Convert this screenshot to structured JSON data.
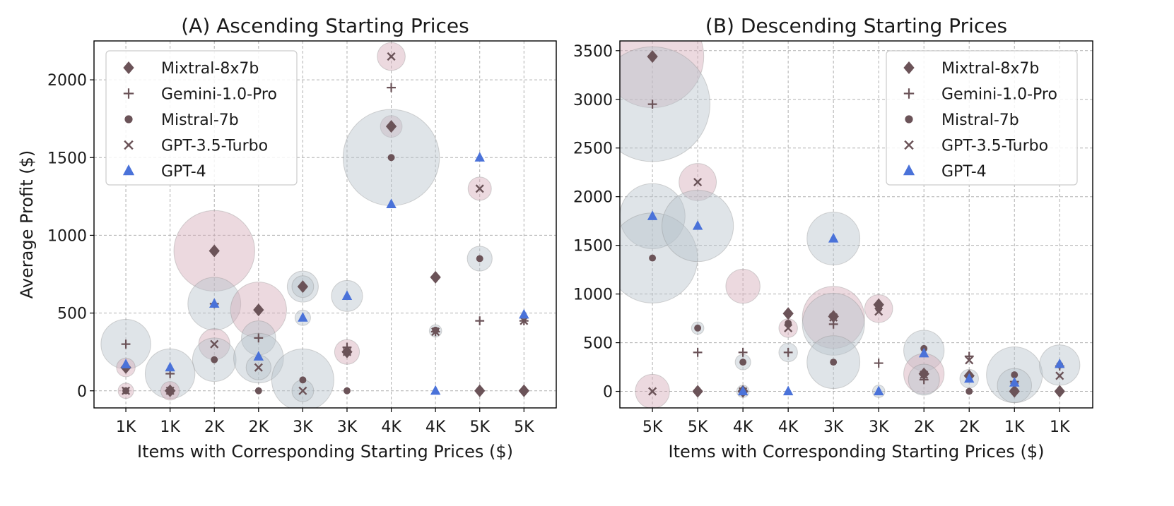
{
  "colors": {
    "mixtral": "#6b5358",
    "gemini": "#6b5358",
    "mistral": "#6b5358",
    "gpt35": "#6b5358",
    "gpt4": "#4a72d9",
    "bubble_pink": "#d4aab8",
    "bubble_grey": "#b9c4cc"
  },
  "series_meta": [
    {
      "key": "mixtral",
      "name": "Mixtral-8x7b",
      "marker": "diamond"
    },
    {
      "key": "gemini",
      "name": "Gemini-1.0-Pro",
      "marker": "plus"
    },
    {
      "key": "mistral",
      "name": "Mistral-7b",
      "marker": "circle"
    },
    {
      "key": "gpt35",
      "name": "GPT-3.5-Turbo",
      "marker": "x"
    },
    {
      "key": "gpt4",
      "name": "GPT-4",
      "marker": "triangle"
    }
  ],
  "chart_data": [
    {
      "type": "scatter",
      "title": "(A) Ascending Starting Prices",
      "xlabel": "Items with Corresponding Starting Prices ($)",
      "ylabel": "Average Profit ($)",
      "categories": [
        "1K",
        "1K",
        "2K",
        "2K",
        "3K",
        "3K",
        "4K",
        "4K",
        "5K",
        "5K"
      ],
      "ylim": [
        -110,
        2250
      ],
      "yticks": [
        0,
        500,
        1000,
        1500,
        2000
      ],
      "grid": true,
      "legend_position": "top-left",
      "series": [
        {
          "key": "mixtral",
          "name": "Mixtral-8x7b",
          "values": [
            150,
            0,
            900,
            520,
            670,
            250,
            1700,
            730,
            0,
            0
          ],
          "spread": [
            60,
            25,
            480,
            180,
            40,
            0,
            70,
            0,
            0,
            0
          ]
        },
        {
          "key": "gemini",
          "name": "Gemini-1.0-Pro",
          "values": [
            300,
            110,
            560,
            340,
            670,
            280,
            1950,
            380,
            450,
            450
          ],
          "spread": [
            0,
            0,
            0,
            0,
            0,
            0,
            0,
            0,
            0,
            0
          ]
        },
        {
          "key": "mistral",
          "name": "Mistral-7b",
          "values": [
            0,
            0,
            200,
            0,
            70,
            0,
            1500,
            390,
            850,
            0
          ],
          "spread": [
            50,
            0,
            0,
            0,
            0,
            0,
            0,
            0,
            0,
            0
          ]
        },
        {
          "key": "gpt35",
          "name": "GPT-3.5-Turbo",
          "values": [
            0,
            0,
            300,
            150,
            0,
            250,
            2150,
            380,
            1300,
            450
          ],
          "spread": [
            0,
            60,
            90,
            60,
            0,
            70,
            75,
            0,
            65,
            0
          ]
        },
        {
          "key": "gpt4",
          "name": "GPT-4",
          "values": [
            170,
            150,
            560,
            220,
            470,
            610,
            1200,
            0,
            1500,
            490
          ],
          "spread": [
            0,
            0,
            0,
            0,
            0,
            0,
            0,
            0,
            0,
            0
          ]
        }
      ],
      "bubbles": [
        {
          "x": 0,
          "y": 300,
          "r": 160,
          "tone": "grey"
        },
        {
          "x": 0,
          "y": 150,
          "r": 60,
          "tone": "pink"
        },
        {
          "x": 0,
          "y": 0,
          "r": 50,
          "tone": "pink"
        },
        {
          "x": 1,
          "y": 110,
          "r": 160,
          "tone": "grey"
        },
        {
          "x": 1,
          "y": 0,
          "r": 60,
          "tone": "pink"
        },
        {
          "x": 2,
          "y": 900,
          "r": 260,
          "tone": "pink"
        },
        {
          "x": 2,
          "y": 560,
          "r": 170,
          "tone": "grey"
        },
        {
          "x": 2,
          "y": 300,
          "r": 100,
          "tone": "pink"
        },
        {
          "x": 2,
          "y": 200,
          "r": 140,
          "tone": "grey"
        },
        {
          "x": 3,
          "y": 520,
          "r": 180,
          "tone": "pink"
        },
        {
          "x": 3,
          "y": 340,
          "r": 110,
          "tone": "grey"
        },
        {
          "x": 3,
          "y": 210,
          "r": 160,
          "tone": "grey"
        },
        {
          "x": 3,
          "y": 150,
          "r": 80,
          "tone": "grey"
        },
        {
          "x": 4,
          "y": 670,
          "r": 100,
          "tone": "grey"
        },
        {
          "x": 4,
          "y": 670,
          "r": 70,
          "tone": "grey"
        },
        {
          "x": 4,
          "y": 470,
          "r": 50,
          "tone": "grey"
        },
        {
          "x": 4,
          "y": 70,
          "r": 200,
          "tone": "grey"
        },
        {
          "x": 4,
          "y": 0,
          "r": 70,
          "tone": "grey"
        },
        {
          "x": 5,
          "y": 250,
          "r": 80,
          "tone": "pink"
        },
        {
          "x": 5,
          "y": 610,
          "r": 100,
          "tone": "grey"
        },
        {
          "x": 6,
          "y": 2150,
          "r": 90,
          "tone": "pink"
        },
        {
          "x": 6,
          "y": 1700,
          "r": 70,
          "tone": "pink"
        },
        {
          "x": 6,
          "y": 1500,
          "r": 310,
          "tone": "grey"
        },
        {
          "x": 7,
          "y": 385,
          "r": 40,
          "tone": "grey"
        },
        {
          "x": 8,
          "y": 1300,
          "r": 75,
          "tone": "pink"
        },
        {
          "x": 8,
          "y": 850,
          "r": 80,
          "tone": "grey"
        },
        {
          "x": 8,
          "y": 0,
          "r": 0,
          "tone": "grey"
        }
      ]
    },
    {
      "type": "scatter",
      "title": "(B) Descending Starting Prices",
      "xlabel": "Items with Corresponding Starting Prices ($)",
      "ylabel": "",
      "categories": [
        "5K",
        "5K",
        "4K",
        "4K",
        "3K",
        "3K",
        "2K",
        "2K",
        "1K",
        "1K"
      ],
      "ylim": [
        -170,
        3600
      ],
      "yticks": [
        0,
        500,
        1000,
        1500,
        2000,
        2500,
        3000,
        3500
      ],
      "grid": true,
      "legend_position": "top-right",
      "series": [
        {
          "key": "mixtral",
          "name": "Mixtral-8x7b",
          "values": [
            3440,
            0,
            0,
            800,
            770,
            890,
            180,
            160,
            0,
            0
          ]
        },
        {
          "key": "gemini",
          "name": "Gemini-1.0-Pro",
          "values": [
            2950,
            400,
            400,
            400,
            690,
            290,
            120,
            360,
            100,
            260
          ]
        },
        {
          "key": "mistral",
          "name": "Mistral-7b",
          "values": [
            1370,
            650,
            300,
            700,
            300,
            850,
            440,
            0,
            170,
            270
          ]
        },
        {
          "key": "gpt35",
          "name": "GPT-3.5-Turbo",
          "values": [
            0,
            2150,
            0,
            650,
            760,
            820,
            170,
            320,
            50,
            160
          ]
        },
        {
          "key": "gpt4",
          "name": "GPT-4",
          "values": [
            1800,
            1700,
            0,
            0,
            1570,
            0,
            390,
            130,
            90,
            280
          ]
        }
      ],
      "bubbles": [
        {
          "x": 0,
          "y": 3440,
          "r": 330,
          "tone": "pink"
        },
        {
          "x": 0,
          "y": 2950,
          "r": 370,
          "tone": "grey"
        },
        {
          "x": 0,
          "y": 1800,
          "r": 210,
          "tone": "grey"
        },
        {
          "x": 0,
          "y": 1370,
          "r": 290,
          "tone": "grey"
        },
        {
          "x": 0,
          "y": 0,
          "r": 110,
          "tone": "pink"
        },
        {
          "x": 1,
          "y": 2150,
          "r": 120,
          "tone": "pink"
        },
        {
          "x": 1,
          "y": 1700,
          "r": 230,
          "tone": "grey"
        },
        {
          "x": 1,
          "y": 650,
          "r": 40,
          "tone": "grey"
        },
        {
          "x": 2,
          "y": 1080,
          "r": 110,
          "tone": "pink"
        },
        {
          "x": 2,
          "y": 300,
          "r": 50,
          "tone": "grey"
        },
        {
          "x": 2,
          "y": 0,
          "r": 40,
          "tone": "grey"
        },
        {
          "x": 3,
          "y": 400,
          "r": 60,
          "tone": "grey"
        },
        {
          "x": 3,
          "y": 650,
          "r": 60,
          "tone": "pink"
        },
        {
          "x": 4,
          "y": 760,
          "r": 200,
          "tone": "pink"
        },
        {
          "x": 4,
          "y": 690,
          "r": 200,
          "tone": "grey"
        },
        {
          "x": 4,
          "y": 300,
          "r": 170,
          "tone": "grey"
        },
        {
          "x": 4,
          "y": 1570,
          "r": 170,
          "tone": "grey"
        },
        {
          "x": 5,
          "y": 850,
          "r": 90,
          "tone": "pink"
        },
        {
          "x": 5,
          "y": 0,
          "r": 40,
          "tone": "grey"
        },
        {
          "x": 6,
          "y": 420,
          "r": 130,
          "tone": "grey"
        },
        {
          "x": 6,
          "y": 180,
          "r": 130,
          "tone": "pink"
        },
        {
          "x": 6,
          "y": 120,
          "r": 100,
          "tone": "grey"
        },
        {
          "x": 7,
          "y": 130,
          "r": 60,
          "tone": "grey"
        },
        {
          "x": 8,
          "y": 170,
          "r": 180,
          "tone": "grey"
        },
        {
          "x": 8,
          "y": 60,
          "r": 110,
          "tone": "grey"
        },
        {
          "x": 9,
          "y": 270,
          "r": 130,
          "tone": "grey"
        }
      ]
    }
  ]
}
